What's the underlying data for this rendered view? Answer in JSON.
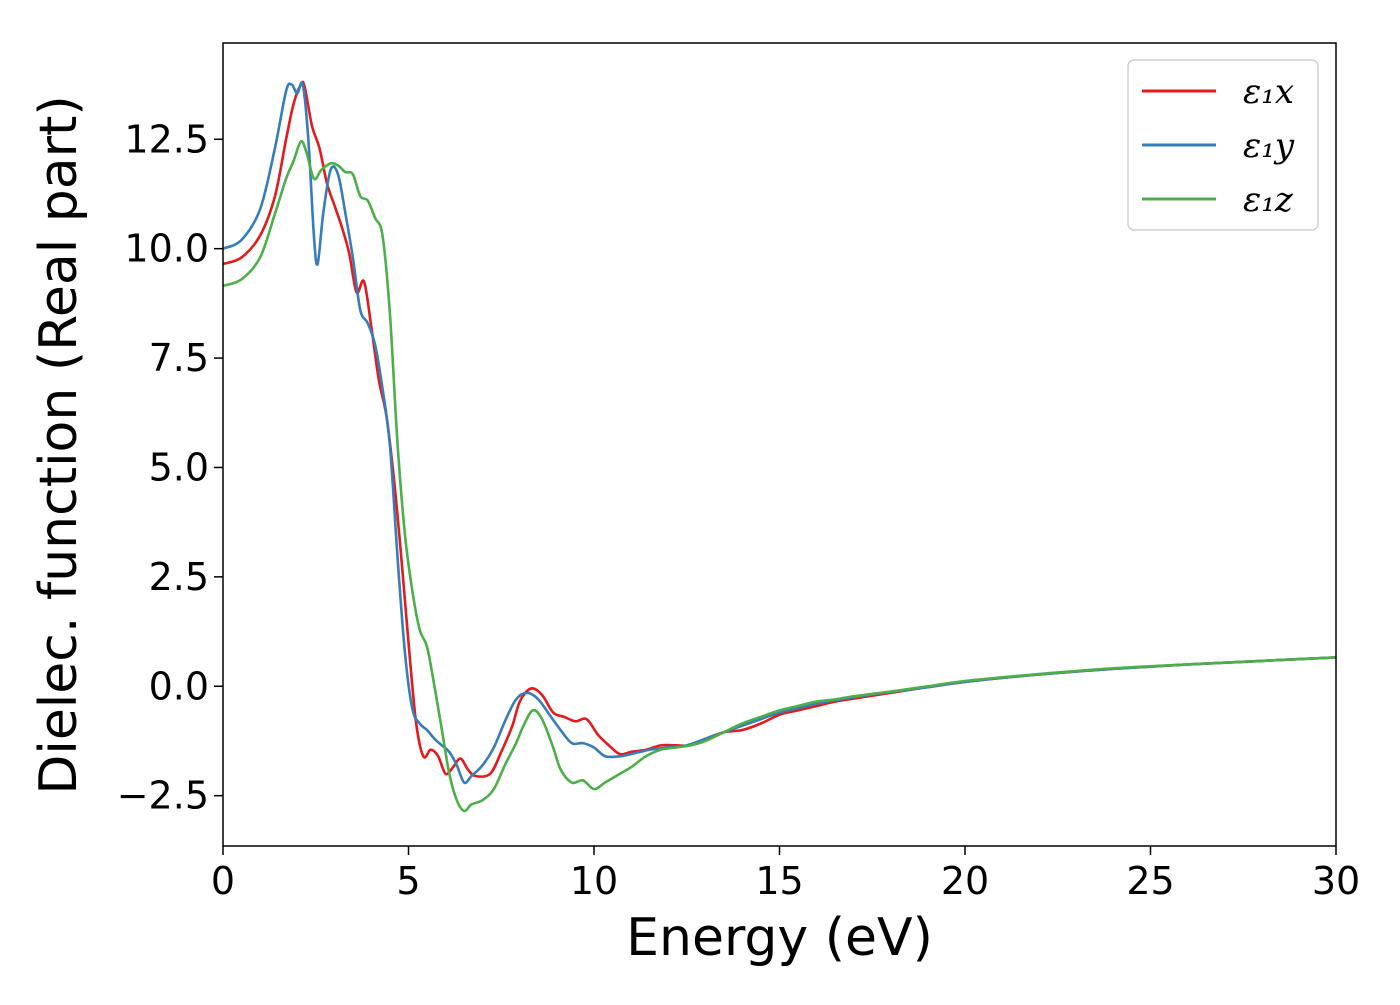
{
  "chart_data": {
    "type": "line",
    "title": "",
    "xlabel": "Energy (eV)",
    "ylabel": "Dielec. function (Real part)",
    "xlim": [
      0,
      30
    ],
    "ylim": [
      -3.65,
      14.7
    ],
    "x_ticks": [
      0,
      5,
      10,
      15,
      20,
      25,
      30
    ],
    "x_tick_labels": [
      "0",
      "5",
      "10",
      "15",
      "20",
      "25",
      "30"
    ],
    "y_ticks": [
      -2.5,
      0.0,
      2.5,
      5.0,
      7.5,
      10.0,
      12.5
    ],
    "y_tick_labels": [
      "−2.5",
      "0.0",
      "2.5",
      "5.0",
      "7.5",
      "10.0",
      "12.5"
    ],
    "grid": false,
    "legend_position": "top-right",
    "series": [
      {
        "name": "ε₁x",
        "color": "#e41a1c",
        "points": [
          [
            0,
            9.65
          ],
          [
            0.5,
            9.8
          ],
          [
            1.0,
            10.3
          ],
          [
            1.4,
            11.2
          ],
          [
            1.7,
            12.5
          ],
          [
            1.9,
            13.3
          ],
          [
            2.1,
            13.75
          ],
          [
            2.2,
            13.7
          ],
          [
            2.4,
            12.8
          ],
          [
            2.6,
            12.3
          ],
          [
            2.8,
            11.5
          ],
          [
            3.0,
            11.0
          ],
          [
            3.2,
            10.5
          ],
          [
            3.4,
            9.9
          ],
          [
            3.6,
            9.0
          ],
          [
            3.8,
            9.25
          ],
          [
            4.0,
            8.2
          ],
          [
            4.2,
            7.0
          ],
          [
            4.4,
            6.2
          ],
          [
            4.6,
            4.8
          ],
          [
            4.8,
            3.0
          ],
          [
            5.0,
            1.0
          ],
          [
            5.2,
            -0.8
          ],
          [
            5.4,
            -1.6
          ],
          [
            5.6,
            -1.45
          ],
          [
            5.8,
            -1.6
          ],
          [
            6.0,
            -2.0
          ],
          [
            6.2,
            -1.85
          ],
          [
            6.4,
            -1.65
          ],
          [
            6.6,
            -1.9
          ],
          [
            6.8,
            -2.05
          ],
          [
            7.2,
            -2.0
          ],
          [
            7.5,
            -1.5
          ],
          [
            7.8,
            -0.9
          ],
          [
            8.0,
            -0.35
          ],
          [
            8.3,
            -0.05
          ],
          [
            8.6,
            -0.2
          ],
          [
            8.9,
            -0.6
          ],
          [
            9.2,
            -0.7
          ],
          [
            9.5,
            -0.8
          ],
          [
            9.8,
            -0.75
          ],
          [
            10.1,
            -1.1
          ],
          [
            10.4,
            -1.35
          ],
          [
            10.7,
            -1.55
          ],
          [
            11.0,
            -1.5
          ],
          [
            11.4,
            -1.45
          ],
          [
            11.8,
            -1.35
          ],
          [
            12.2,
            -1.35
          ],
          [
            12.6,
            -1.35
          ],
          [
            13.0,
            -1.2
          ],
          [
            13.5,
            -1.05
          ],
          [
            14.0,
            -1.0
          ],
          [
            14.5,
            -0.85
          ],
          [
            15.0,
            -0.65
          ],
          [
            15.5,
            -0.55
          ],
          [
            16.0,
            -0.45
          ],
          [
            16.5,
            -0.35
          ],
          [
            17.0,
            -0.28
          ],
          [
            18.0,
            -0.15
          ],
          [
            19.0,
            -0.02
          ],
          [
            20.0,
            0.1
          ],
          [
            22.0,
            0.27
          ],
          [
            24.0,
            0.4
          ],
          [
            26.0,
            0.5
          ],
          [
            28.0,
            0.58
          ],
          [
            30.0,
            0.66
          ]
        ]
      },
      {
        "name": "ε₁y",
        "color": "#377eb8",
        "points": [
          [
            0,
            10.0
          ],
          [
            0.5,
            10.2
          ],
          [
            1.0,
            10.9
          ],
          [
            1.4,
            12.3
          ],
          [
            1.7,
            13.6
          ],
          [
            1.85,
            13.75
          ],
          [
            2.0,
            13.55
          ],
          [
            2.15,
            13.75
          ],
          [
            2.3,
            12.5
          ],
          [
            2.45,
            10.3
          ],
          [
            2.55,
            9.65
          ],
          [
            2.7,
            10.8
          ],
          [
            2.9,
            11.8
          ],
          [
            3.1,
            11.7
          ],
          [
            3.3,
            10.8
          ],
          [
            3.5,
            9.8
          ],
          [
            3.7,
            8.6
          ],
          [
            3.9,
            8.3
          ],
          [
            4.1,
            7.8
          ],
          [
            4.3,
            6.8
          ],
          [
            4.5,
            5.5
          ],
          [
            4.7,
            3.0
          ],
          [
            4.9,
            0.8
          ],
          [
            5.1,
            -0.5
          ],
          [
            5.3,
            -0.85
          ],
          [
            5.5,
            -1.0
          ],
          [
            5.7,
            -1.2
          ],
          [
            5.9,
            -1.35
          ],
          [
            6.1,
            -1.5
          ],
          [
            6.3,
            -1.8
          ],
          [
            6.5,
            -2.2
          ],
          [
            6.7,
            -2.05
          ],
          [
            7.0,
            -1.8
          ],
          [
            7.3,
            -1.4
          ],
          [
            7.6,
            -0.8
          ],
          [
            7.9,
            -0.3
          ],
          [
            8.2,
            -0.15
          ],
          [
            8.5,
            -0.3
          ],
          [
            8.8,
            -0.65
          ],
          [
            9.1,
            -1.0
          ],
          [
            9.4,
            -1.3
          ],
          [
            9.7,
            -1.3
          ],
          [
            10.0,
            -1.4
          ],
          [
            10.3,
            -1.6
          ],
          [
            10.7,
            -1.6
          ],
          [
            11.0,
            -1.55
          ],
          [
            11.5,
            -1.45
          ],
          [
            12.0,
            -1.4
          ],
          [
            12.5,
            -1.35
          ],
          [
            13.0,
            -1.2
          ],
          [
            13.5,
            -1.05
          ],
          [
            14.0,
            -0.9
          ],
          [
            14.5,
            -0.75
          ],
          [
            15.0,
            -0.6
          ],
          [
            15.5,
            -0.5
          ],
          [
            16.0,
            -0.4
          ],
          [
            16.5,
            -0.32
          ],
          [
            17.0,
            -0.25
          ],
          [
            18.0,
            -0.13
          ],
          [
            19.0,
            -0.02
          ],
          [
            20.0,
            0.1
          ],
          [
            22.0,
            0.27
          ],
          [
            24.0,
            0.4
          ],
          [
            26.0,
            0.5
          ],
          [
            28.0,
            0.58
          ],
          [
            30.0,
            0.66
          ]
        ]
      },
      {
        "name": "ε₁z",
        "color": "#4daf4a",
        "points": [
          [
            0,
            9.15
          ],
          [
            0.5,
            9.3
          ],
          [
            1.0,
            9.8
          ],
          [
            1.4,
            10.8
          ],
          [
            1.7,
            11.6
          ],
          [
            1.9,
            12.0
          ],
          [
            2.1,
            12.45
          ],
          [
            2.25,
            12.2
          ],
          [
            2.45,
            11.6
          ],
          [
            2.65,
            11.8
          ],
          [
            2.9,
            11.95
          ],
          [
            3.1,
            11.9
          ],
          [
            3.3,
            11.75
          ],
          [
            3.5,
            11.7
          ],
          [
            3.7,
            11.2
          ],
          [
            3.9,
            11.1
          ],
          [
            4.1,
            10.7
          ],
          [
            4.3,
            10.3
          ],
          [
            4.5,
            8.5
          ],
          [
            4.7,
            5.6
          ],
          [
            4.9,
            3.5
          ],
          [
            5.1,
            2.2
          ],
          [
            5.3,
            1.3
          ],
          [
            5.5,
            0.9
          ],
          [
            5.7,
            0.0
          ],
          [
            5.9,
            -1.0
          ],
          [
            6.1,
            -2.0
          ],
          [
            6.3,
            -2.6
          ],
          [
            6.5,
            -2.85
          ],
          [
            6.7,
            -2.7
          ],
          [
            7.0,
            -2.6
          ],
          [
            7.3,
            -2.35
          ],
          [
            7.6,
            -1.8
          ],
          [
            7.9,
            -1.3
          ],
          [
            8.1,
            -0.9
          ],
          [
            8.35,
            -0.55
          ],
          [
            8.6,
            -0.75
          ],
          [
            8.9,
            -1.4
          ],
          [
            9.1,
            -1.9
          ],
          [
            9.4,
            -2.2
          ],
          [
            9.7,
            -2.15
          ],
          [
            10.0,
            -2.35
          ],
          [
            10.3,
            -2.2
          ],
          [
            10.7,
            -2.0
          ],
          [
            11.0,
            -1.85
          ],
          [
            11.4,
            -1.6
          ],
          [
            11.8,
            -1.45
          ],
          [
            12.2,
            -1.4
          ],
          [
            12.6,
            -1.35
          ],
          [
            13.0,
            -1.25
          ],
          [
            13.5,
            -1.05
          ],
          [
            14.0,
            -0.85
          ],
          [
            14.5,
            -0.7
          ],
          [
            15.0,
            -0.55
          ],
          [
            15.5,
            -0.45
          ],
          [
            16.0,
            -0.35
          ],
          [
            16.5,
            -0.3
          ],
          [
            17.0,
            -0.23
          ],
          [
            18.0,
            -0.12
          ],
          [
            19.0,
            0.0
          ],
          [
            20.0,
            0.12
          ],
          [
            22.0,
            0.28
          ],
          [
            24.0,
            0.41
          ],
          [
            26.0,
            0.5
          ],
          [
            28.0,
            0.58
          ],
          [
            30.0,
            0.66
          ]
        ]
      }
    ]
  }
}
